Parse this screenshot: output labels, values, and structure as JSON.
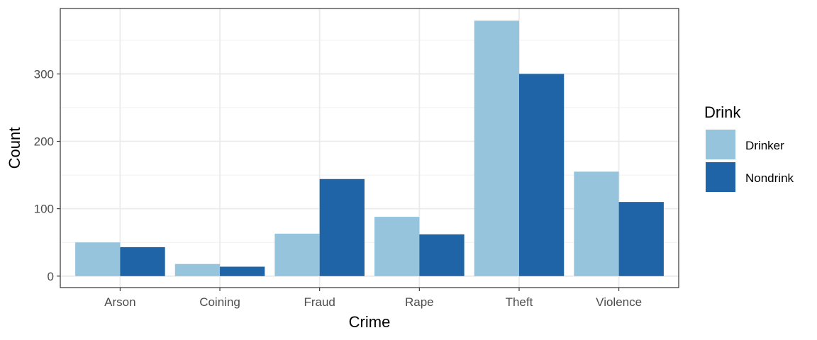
{
  "chart_data": {
    "type": "bar",
    "title": "",
    "xlabel": "Crime",
    "ylabel": "Count",
    "categories": [
      "Arson",
      "Coining",
      "Fraud",
      "Rape",
      "Theft",
      "Violence"
    ],
    "series": [
      {
        "name": "Drinker",
        "color": "#97c4dd",
        "values": [
          50,
          18,
          63,
          88,
          379,
          155
        ]
      },
      {
        "name": "Nondrink",
        "color": "#1e64a6",
        "values": [
          43,
          14,
          144,
          62,
          300,
          110
        ]
      }
    ],
    "ylim": [
      -17,
      397
    ],
    "yticks": [
      0,
      100,
      200,
      300
    ],
    "ytick_labels": [
      "0",
      "100",
      "200",
      "300"
    ],
    "grid": true,
    "legend": {
      "title": "Drink",
      "position": "right"
    }
  }
}
